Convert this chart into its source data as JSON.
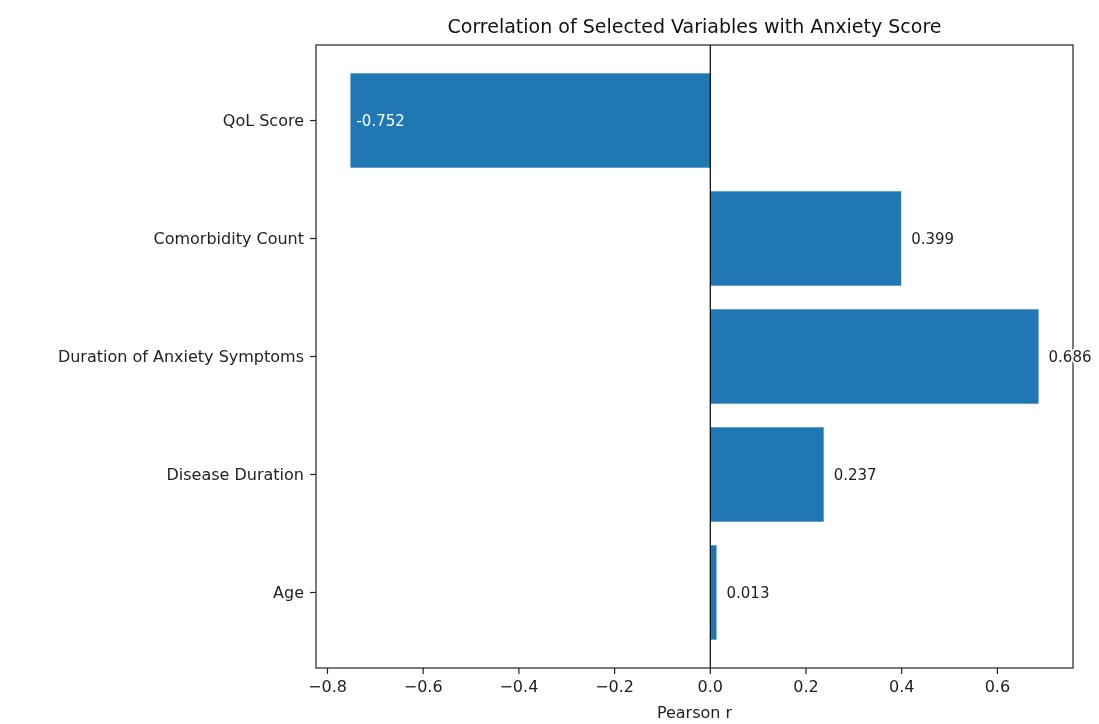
{
  "chart_data": {
    "type": "bar",
    "orientation": "horizontal",
    "title": "Correlation of Selected Variables with Anxiety Score",
    "xlabel": "Pearson r",
    "categories": [
      "QoL Score",
      "Comorbidity Count",
      "Duration of Anxiety Symptoms",
      "Disease Duration",
      "Age"
    ],
    "values": [
      -0.752,
      0.399,
      0.686,
      0.237,
      0.013
    ],
    "color": "#1f77b4",
    "xlim": [
      -0.824,
      0.758
    ],
    "xticks": [
      {
        "value": -0.8,
        "label": "−0.8"
      },
      {
        "value": -0.6,
        "label": "−0.6"
      },
      {
        "value": -0.4,
        "label": "−0.4"
      },
      {
        "value": -0.2,
        "label": "−0.2"
      },
      {
        "value": 0,
        "label": "0.0"
      },
      {
        "value": 0.2,
        "label": "0.2"
      },
      {
        "value": 0.4,
        "label": "0.4"
      },
      {
        "value": 0.6,
        "label": "0.6"
      }
    ],
    "ref_lines": [
      {
        "axis": "x",
        "value": 0,
        "color": "#000000"
      }
    ],
    "data_labels": true
  }
}
